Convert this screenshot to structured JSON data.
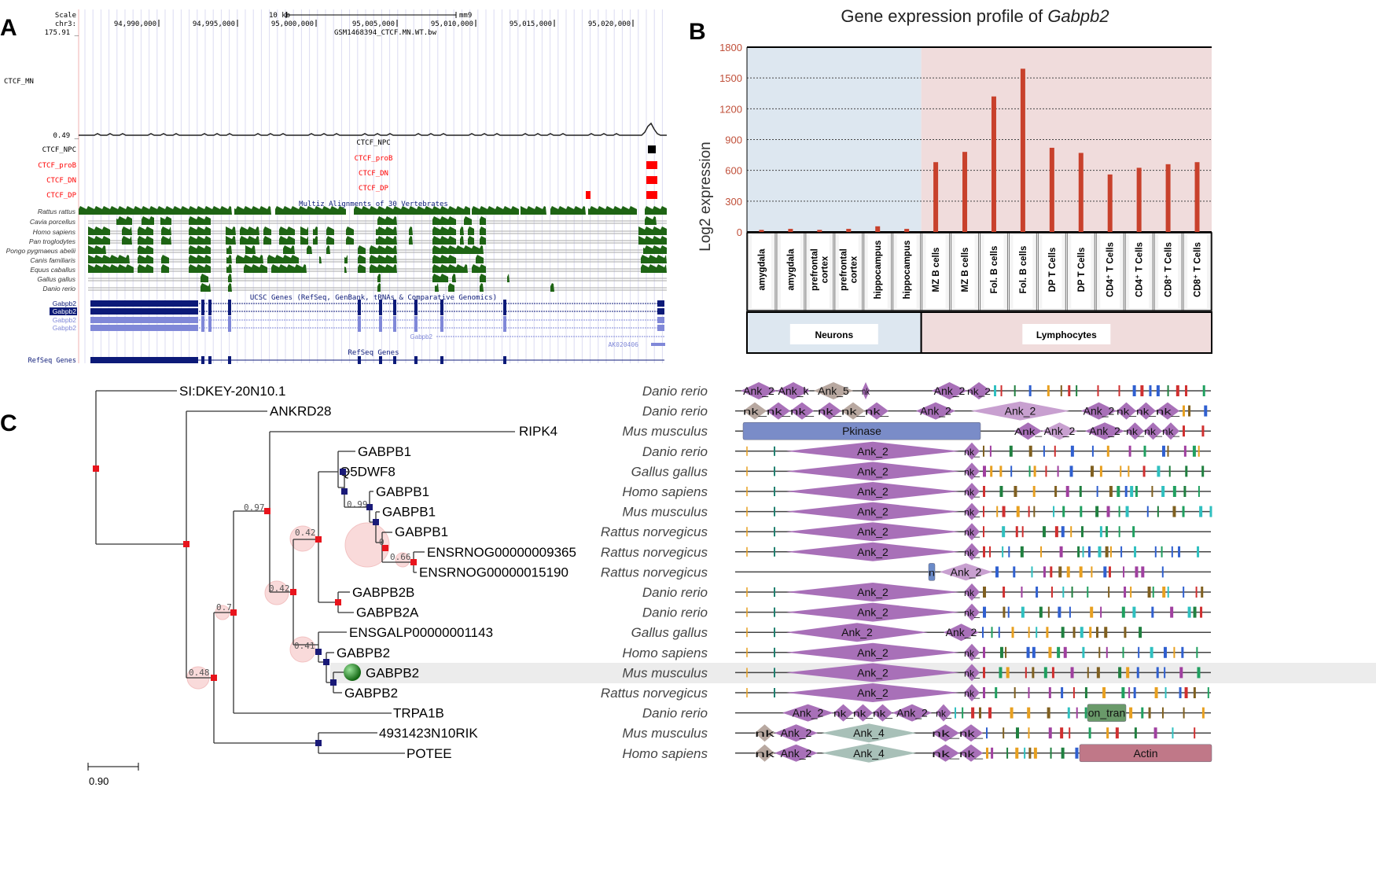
{
  "panels": {
    "a": "A",
    "b": "B",
    "c": "C"
  },
  "browser": {
    "scale_label": "Scale",
    "chrom_label": "chr3:",
    "max_value": "175.91 _",
    "min_value": "0.49 _",
    "scale_bar_label": "10 kb",
    "assembly": "mm9",
    "positions": [
      "94,990,000",
      "94,995,000",
      "95,000,000",
      "95,005,000",
      "95,010,000",
      "95,015,000",
      "95,020,000"
    ],
    "wiggle_track_title": "GSM1468394_CTCF.MN.WT.bw",
    "wiggle_track_label": "CTCF_MN",
    "peak_tracks": [
      {
        "label": "CTCF_NPC",
        "center_label": "CTCF_NPC",
        "color": "#000000"
      },
      {
        "label": "CTCF_proB",
        "center_label": "CTCF_proB",
        "color": "#ff0000"
      },
      {
        "label": "CTCF_DN",
        "center_label": "CTCF_DN",
        "color": "#ff0000"
      },
      {
        "label": "CTCF_DP",
        "center_label": "CTCF_DP",
        "color": "#ff0000"
      }
    ],
    "multiz_title": "Multiz Alignments of 30 Vertebrates",
    "species": [
      "Rattus rattus",
      "Cavia porcellus",
      "Homo sapiens",
      "Pan troglodytes",
      "Pongo pygmaeus abelii",
      "Canis familiaris",
      "Equus caballus",
      "Gallus gallus",
      "Danio rerio"
    ],
    "conservation_color": "#1e6414",
    "ucsc_genes_title": "UCSC Genes (RefSeq, GenBank, tRNAs & Comparative Genomics)",
    "ucsc_genes": [
      "Gabpb2",
      "Gabpb2",
      "Gabpb2",
      "Gabpb2"
    ],
    "extra_gene": "Gabpb2",
    "extra_transcript": "AK020406",
    "refseq_title": "RefSeq Genes",
    "refseq_label": "RefSeq Genes",
    "gene_color": "#0c1a78",
    "gene_light_color": "#8088d8"
  },
  "chart_data": {
    "type": "bar",
    "title": "Gene expression profile of ",
    "title_italic": "Gabpb2",
    "ylabel": "Log2 expression",
    "xlabel": "",
    "ylim": [
      0,
      1800
    ],
    "yticks": [
      "0",
      "300",
      "600",
      "900",
      "1200",
      "1500",
      "1800"
    ],
    "grid": true,
    "bar_color": "#c8412c",
    "categories": [
      "amygdala",
      "amygdala",
      "prefrontal cortex",
      "prefrontal cortex",
      "hippocampus",
      "hippocampus",
      "MZ B cells",
      "MZ B cells",
      "Fol.  B cells",
      "Fol.  B cells",
      "DP T Cells",
      "DP T Cells",
      "CD4⁺ T Cells",
      "CD4⁺ T Cells",
      "CD8⁺ T Cells",
      "CD8⁺ T Cells"
    ],
    "values": [
      20,
      30,
      20,
      30,
      55,
      30,
      680,
      780,
      1320,
      1590,
      820,
      770,
      560,
      625,
      660,
      680
    ],
    "groups": [
      {
        "label": "Neurons",
        "count": 6,
        "color": "#dde7f0"
      },
      {
        "label": "Lymphocytes",
        "count": 10,
        "color": "#f0dcdc"
      }
    ]
  },
  "tree": {
    "leaves": [
      {
        "gene": "SI:DKEY-20N10.1",
        "species": "Danio rerio"
      },
      {
        "gene": "ANKRD28",
        "species": "Danio rerio"
      },
      {
        "gene": "RIPK4",
        "species": "Mus musculus"
      },
      {
        "gene": "GABPB1",
        "species": "Danio rerio"
      },
      {
        "gene": "Q5DWF8",
        "species": "Gallus gallus"
      },
      {
        "gene": "GABPB1",
        "species": "Homo sapiens"
      },
      {
        "gene": "GABPB1",
        "species": "Mus musculus"
      },
      {
        "gene": "GABPB1",
        "species": "Rattus norvegicus"
      },
      {
        "gene": "ENSRNOG00000009365",
        "species": "Rattus norvegicus"
      },
      {
        "gene": "ENSRNOG00000015190",
        "species": "Rattus norvegicus"
      },
      {
        "gene": "GABPB2B",
        "species": "Danio rerio"
      },
      {
        "gene": "GABPB2A",
        "species": "Danio rerio"
      },
      {
        "gene": "ENSGALP00000001143",
        "species": "Gallus gallus"
      },
      {
        "gene": "GABPB2",
        "species": "Homo sapiens"
      },
      {
        "gene": "GABPB2",
        "species": "Mus musculus",
        "highlighted": true
      },
      {
        "gene": "GABPB2",
        "species": "Rattus norvegicus"
      },
      {
        "gene": "TRPA1B",
        "species": "Danio rerio"
      },
      {
        "gene": "4931423N10RIK",
        "species": "Mus musculus"
      },
      {
        "gene": "POTEE",
        "species": "Homo sapiens"
      }
    ],
    "support_values": [
      "0.97",
      "0.42",
      "0.42",
      "0.7",
      "0.48",
      "0.41",
      "0.99",
      "0.66",
      "0"
    ],
    "scale_bar_label": "0.90",
    "node_colors": {
      "duplication": "#e8141c",
      "speciation": "#1a1a78"
    }
  },
  "domains": {
    "rows": [
      [
        "Ank_2",
        "Ank_k",
        "Ank_5",
        "nk",
        "Ank_2",
        "nk_2"
      ],
      [
        "nk_",
        "nk_",
        "nk_",
        "nk_",
        "nk_",
        "nk_",
        "Ank_2",
        "Ank_2",
        "Ank_2",
        "nk_",
        "nk_",
        "nk_"
      ],
      [
        "Pkinase",
        "Ank_",
        "Ank_2",
        "Ank_2",
        "nk_",
        "nk_",
        "nk_"
      ],
      [
        "Ank_2",
        "nk_"
      ],
      [
        "Ank_2",
        "nk_"
      ],
      [
        "Ank_2",
        "nk_"
      ],
      [
        "Ank_2",
        "nk_"
      ],
      [
        "Ank_2",
        "nk_"
      ],
      [
        "Ank_2",
        "nk_"
      ],
      [
        "n",
        "Ank_2"
      ],
      [
        "Ank_2",
        "nk_"
      ],
      [
        "Ank_2",
        "nk_"
      ],
      [
        "Ank_2",
        "Ank_2"
      ],
      [
        "Ank_2",
        "nk_"
      ],
      [
        "Ank_2",
        "nk_"
      ],
      [
        "Ank_2",
        "nk_"
      ],
      [
        "Ank_2",
        "nk_",
        "nk_",
        "nk_",
        "Ank_2",
        "nk_",
        "on_tran"
      ],
      [
        "nk",
        "Ank_2",
        "Ank_4",
        "nk_",
        "nk_"
      ],
      [
        "nk",
        "Ank_2",
        "Ank_4",
        "nk_",
        "nk_",
        "Actin"
      ]
    ],
    "colors": {
      "ank": "#a870b8",
      "ank_light": "#c8a0d0",
      "ank4": "#a8c0b8",
      "pkinase": "#7a8cc8",
      "actin": "#c07888",
      "transport": "#6a9a6a"
    }
  }
}
